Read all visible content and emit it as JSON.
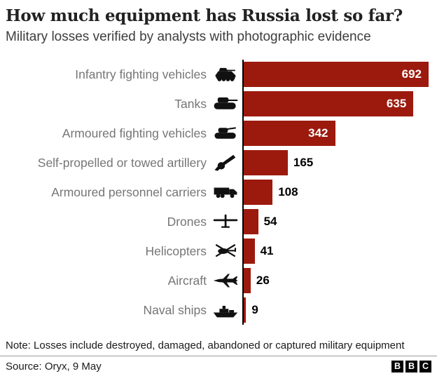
{
  "chart_data": {
    "type": "bar",
    "orientation": "horizontal",
    "title": "How much equipment has Russia lost so far?",
    "subtitle": "Military losses verified by analysts with photographic evidence",
    "categories": [
      "Infantry fighting vehicles",
      "Tanks",
      "Armoured fighting vehicles",
      "Self-propelled or towed artillery",
      "Armoured personnel carriers",
      "Drones",
      "Helicopters",
      "Aircraft",
      "Naval ships"
    ],
    "values": [
      692,
      635,
      342,
      165,
      108,
      54,
      41,
      26,
      9
    ],
    "icons": [
      "ifv-icon",
      "tank-icon",
      "afv-icon",
      "artillery-icon",
      "apc-truck-icon",
      "drone-icon",
      "helicopter-icon",
      "jet-icon",
      "ship-icon"
    ],
    "bar_color": "#9c1a0d",
    "value_label_color_inside": "#ffffff",
    "value_label_color_outside": "#000000",
    "axis_color": "#000000",
    "xlim": [
      0,
      700
    ],
    "grid": false,
    "legend": false
  },
  "footer": {
    "note": "Note: Losses include destroyed, damaged, abandoned or captured military equipment",
    "source": "Source: Oryx, 9 May",
    "logo": [
      "B",
      "B",
      "C"
    ]
  }
}
